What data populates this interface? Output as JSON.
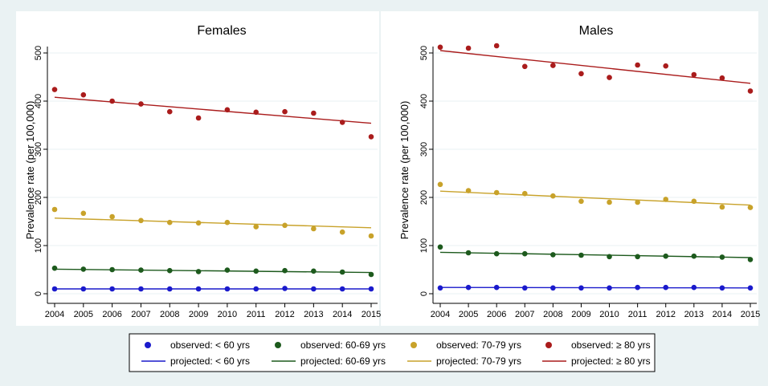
{
  "chart_data": [
    {
      "type": "scatter",
      "title": "Females",
      "ylabel": "Prevalence rate (per 100,000)",
      "xlabel": "",
      "x": [
        2004,
        2005,
        2006,
        2007,
        2008,
        2009,
        2010,
        2011,
        2012,
        2013,
        2014,
        2015
      ],
      "xticks": [
        "2004",
        "2005",
        "2006",
        "2007",
        "2008",
        "2009",
        "2010",
        "2011",
        "2012",
        "2013",
        "2014",
        "2015"
      ],
      "yticks": [
        "0",
        "100",
        "200",
        "300",
        "400",
        "500"
      ],
      "xlim": [
        2004,
        2015
      ],
      "ylim": [
        0,
        500
      ],
      "series": [
        {
          "name": "observed: < 60 yrs",
          "group": "lt60",
          "values": [
            10,
            10,
            10,
            10,
            10,
            10,
            10,
            10,
            11,
            10,
            10,
            10
          ]
        },
        {
          "name": "observed: 60-69 yrs",
          "group": "g6069",
          "values": [
            53,
            51,
            50,
            49,
            48,
            46,
            49,
            47,
            48,
            47,
            45,
            40
          ]
        },
        {
          "name": "observed: 70-79 yrs",
          "group": "g7079",
          "values": [
            175,
            167,
            160,
            152,
            148,
            147,
            148,
            139,
            142,
            135,
            128,
            120
          ]
        },
        {
          "name": "observed: ≥ 80 yrs",
          "group": "ge80",
          "values": [
            424,
            413,
            400,
            394,
            378,
            365,
            382,
            377,
            378,
            375,
            356,
            326
          ]
        }
      ],
      "projected": [
        {
          "name": "projected: < 60 yrs",
          "group": "lt60",
          "start": 10,
          "end": 10
        },
        {
          "name": "projected: 60-69 yrs",
          "group": "g6069",
          "start": 51,
          "end": 44
        },
        {
          "name": "projected: 70-79 yrs",
          "group": "g7079",
          "start": 157,
          "end": 137
        },
        {
          "name": "projected: ≥ 80 yrs",
          "group": "ge80",
          "start": 408,
          "end": 354
        }
      ]
    },
    {
      "type": "scatter",
      "title": "Males",
      "ylabel": "Prevalence rate (per 100,000)",
      "xlabel": "",
      "x": [
        2004,
        2005,
        2006,
        2007,
        2008,
        2009,
        2010,
        2011,
        2012,
        2013,
        2014,
        2015
      ],
      "xticks": [
        "2004",
        "2005",
        "2006",
        "2007",
        "2008",
        "2009",
        "2010",
        "2011",
        "2012",
        "2013",
        "2014",
        "2015"
      ],
      "yticks": [
        "0",
        "100",
        "200",
        "300",
        "400",
        "500"
      ],
      "xlim": [
        2004,
        2015
      ],
      "ylim": [
        0,
        500
      ],
      "series": [
        {
          "name": "observed: < 60 yrs",
          "group": "lt60",
          "values": [
            12,
            13,
            13,
            12,
            12,
            12,
            12,
            13,
            13,
            13,
            12,
            12
          ]
        },
        {
          "name": "observed: 60-69 yrs",
          "group": "g6069",
          "values": [
            97,
            85,
            83,
            83,
            81,
            80,
            77,
            77,
            78,
            78,
            76,
            71
          ]
        },
        {
          "name": "observed: 70-79 yrs",
          "group": "g7079",
          "values": [
            227,
            214,
            210,
            208,
            203,
            192,
            190,
            190,
            196,
            192,
            180,
            179
          ]
        },
        {
          "name": "observed: ≥ 80 yrs",
          "group": "ge80",
          "values": [
            512,
            510,
            515,
            472,
            474,
            457,
            449,
            475,
            473,
            455,
            448,
            421
          ]
        }
      ],
      "projected": [
        {
          "name": "projected: < 60 yrs",
          "group": "lt60",
          "start": 13,
          "end": 12
        },
        {
          "name": "projected: 60-69 yrs",
          "group": "g6069",
          "start": 86,
          "end": 75
        },
        {
          "name": "projected: 70-79 yrs",
          "group": "g7079",
          "start": 213,
          "end": 184
        },
        {
          "name": "projected: ≥ 80 yrs",
          "group": "ge80",
          "start": 505,
          "end": 437
        }
      ]
    }
  ],
  "colors": {
    "lt60": "#1a1acc",
    "g6069": "#1d5a1d",
    "g7079": "#c8a22a",
    "ge80": "#aa1c1c"
  },
  "legend": [
    [
      "observed: < 60 yrs",
      "observed: 60-69 yrs",
      "observed: 70-79 yrs",
      "observed: ≥ 80 yrs"
    ],
    [
      "projected: < 60 yrs",
      "projected: 60-69 yrs",
      "projected: 70-79 yrs",
      "projected: ≥ 80 yrs"
    ]
  ]
}
